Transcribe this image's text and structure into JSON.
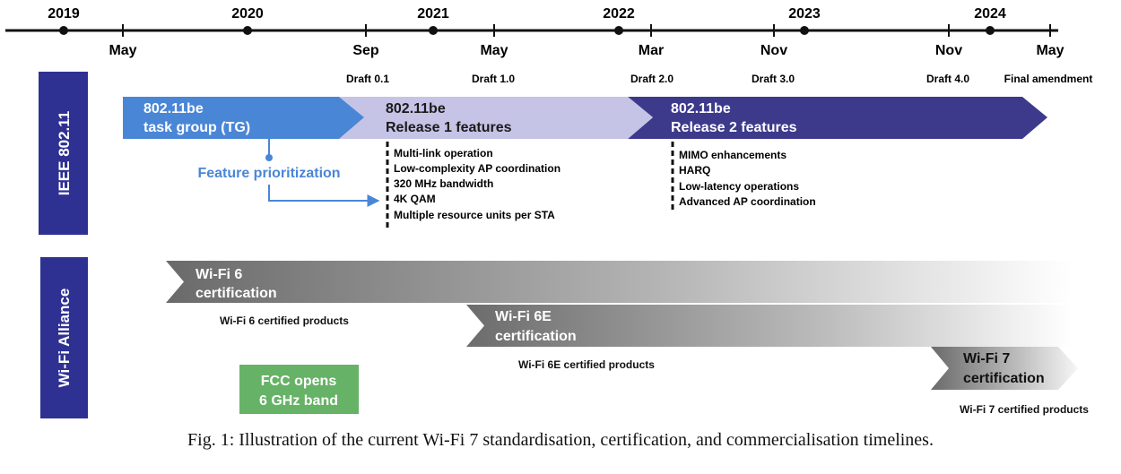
{
  "timeline": {
    "years": [
      "2019",
      "2020",
      "2021",
      "2022",
      "2023",
      "2024"
    ],
    "months": [
      "May",
      "Sep",
      "May",
      "Mar",
      "Nov",
      "Nov",
      "May"
    ],
    "drafts": [
      "Draft 0.1",
      "Draft 1.0",
      "Draft 2.0",
      "Draft 3.0",
      "Draft 4.0",
      "Final amendment"
    ]
  },
  "ieee": {
    "label": "IEEE 802.11",
    "tg": {
      "line1": "802.11be",
      "line2": "task group (TG)"
    },
    "release1": {
      "line1": "802.11be",
      "line2": "Release 1 features"
    },
    "release2": {
      "line1": "802.11be",
      "line2": "Release 2 features"
    },
    "feature_prioritization": "Feature prioritization",
    "release1_features": [
      "Multi-link operation",
      "Low-complexity AP coordination",
      "320 MHz bandwidth",
      "4K QAM",
      "Multiple resource units per STA"
    ],
    "release2_features": [
      "MIMO enhancements",
      "HARQ",
      "Low-latency operations",
      "Advanced AP coordination"
    ]
  },
  "wfa": {
    "label": "Wi-Fi Alliance",
    "wifi6": {
      "line1": "Wi-Fi 6",
      "line2": "certification",
      "products": "Wi-Fi 6 certified products"
    },
    "wifi6e": {
      "line1": "Wi-Fi 6E",
      "line2": "certification",
      "products": "Wi-Fi 6E certified products"
    },
    "wifi7": {
      "line1": "Wi-Fi 7",
      "line2": "certification",
      "products": "Wi-Fi 7 certified products"
    },
    "fcc": {
      "line1": "FCC opens",
      "line2": "6 GHz band"
    }
  },
  "caption": "Fig. 1: Illustration of the current Wi-Fi 7 standardisation, certification, and commercialisation timelines.",
  "colors": {
    "tg": "#4a86d6",
    "release1": "#c5c3e6",
    "release2": "#3d3a8c",
    "side_label": "#2e3192",
    "fcc": "#66b266",
    "feature_link": "#4a86d6"
  }
}
